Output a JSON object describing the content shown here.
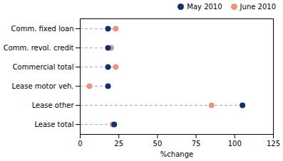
{
  "chart_data": {
    "type": "dot",
    "xlabel": "%change",
    "categories": [
      "Comm. fixed loan",
      "Comm. revol. credit",
      "Commercial total",
      "Lease motor veh.",
      "Lease other",
      "Lease total"
    ],
    "series": [
      {
        "name": "May 2010",
        "color": "#1a2e6e",
        "values": [
          18,
          18,
          18,
          18,
          105,
          22
        ]
      },
      {
        "name": "June 2010",
        "color": "#e8967a",
        "values": [
          23,
          20,
          23,
          6,
          85,
          21
        ]
      }
    ],
    "xlim": [
      0,
      125
    ],
    "xticks": [
      0,
      25,
      50,
      75,
      100,
      125
    ],
    "grid": false,
    "legend": "upper right",
    "line_style": "dashed"
  }
}
